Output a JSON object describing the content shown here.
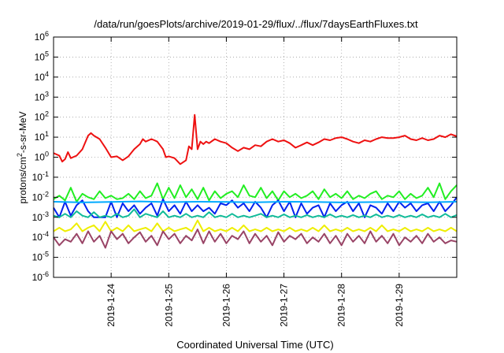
{
  "chart_data": {
    "type": "line",
    "title": "/data/run/goesPlots/archive/2019-01-29/flux/../flux/7daysEarthFluxes.txt",
    "xlabel": "Coordinated Universal Time (UTC)",
    "ylabel": "protons/cm2-s-sr-MeV",
    "ylabel_main": "protons/cm",
    "ylabel_sup": "2",
    "ylabel_rest": "-s-sr-MeV",
    "yscale": "log",
    "ylim": [
      1e-06,
      1000000.0
    ],
    "xlim": [
      0,
      7
    ],
    "x_ticks": [
      {
        "x": 1,
        "label": "2019-1-24"
      },
      {
        "x": 2,
        "label": "2019-1-25"
      },
      {
        "x": 3,
        "label": "2019-1-26"
      },
      {
        "x": 4,
        "label": "2019-1-27"
      },
      {
        "x": 5,
        "label": "2019-1-28"
      },
      {
        "x": 6,
        "label": "2019-1-29"
      }
    ],
    "y_ticks": [
      {
        "value": 1e-06,
        "base": "10",
        "exp": "-6"
      },
      {
        "value": 1e-05,
        "base": "10",
        "exp": "-5"
      },
      {
        "value": 0.0001,
        "base": "10",
        "exp": "-4"
      },
      {
        "value": 0.001,
        "base": "10",
        "exp": "-3"
      },
      {
        "value": 0.01,
        "base": "10",
        "exp": "-2"
      },
      {
        "value": 0.1,
        "base": "10",
        "exp": "-1"
      },
      {
        "value": 1,
        "base": "10",
        "exp": "0"
      },
      {
        "value": 10,
        "base": "10",
        "exp": "1"
      },
      {
        "value": 100,
        "base": "10",
        "exp": "2"
      },
      {
        "value": 1000,
        "base": "10",
        "exp": "3"
      },
      {
        "value": 10000,
        "base": "10",
        "exp": "4"
      },
      {
        "value": 100000,
        "base": "10",
        "exp": "5"
      },
      {
        "value": 1000000,
        "base": "10",
        "exp": "6"
      }
    ],
    "grid": true,
    "series": [
      {
        "color": "#ee1111",
        "x": [
          0,
          0.1,
          0.15,
          0.2,
          0.25,
          0.3,
          0.4,
          0.5,
          0.6,
          0.65,
          0.7,
          0.8,
          0.9,
          1.0,
          1.1,
          1.2,
          1.3,
          1.4,
          1.5,
          1.55,
          1.6,
          1.7,
          1.75,
          1.8,
          1.9,
          1.95,
          2.0,
          2.1,
          2.2,
          2.3,
          2.35,
          2.4,
          2.45,
          2.5,
          2.55,
          2.6,
          2.65,
          2.7,
          2.8,
          2.9,
          3.0,
          3.1,
          3.2,
          3.3,
          3.4,
          3.5,
          3.6,
          3.7,
          3.8,
          3.9,
          4.0,
          4.1,
          4.2,
          4.3,
          4.4,
          4.5,
          4.6,
          4.7,
          4.8,
          4.9,
          5.0,
          5.1,
          5.2,
          5.3,
          5.4,
          5.5,
          5.6,
          5.7,
          5.8,
          5.9,
          6.0,
          6.1,
          6.2,
          6.3,
          6.4,
          6.5,
          6.6,
          6.7,
          6.8,
          6.9,
          7.0
        ],
        "y": [
          1.6,
          1.2,
          0.6,
          0.8,
          1.8,
          0.9,
          1.2,
          2.5,
          12,
          16,
          12,
          8,
          3,
          1.0,
          1.1,
          0.7,
          1.1,
          2.5,
          4.5,
          8,
          6,
          8,
          7,
          6,
          2.5,
          1.0,
          1.1,
          0.9,
          0.45,
          0.7,
          3.5,
          2.5,
          130,
          2.5,
          6,
          4.5,
          6,
          5,
          8,
          6,
          5,
          3,
          2,
          3,
          2.5,
          4,
          3.5,
          6,
          8,
          6,
          7,
          5,
          3,
          4,
          5.5,
          4,
          5.5,
          8,
          7,
          9,
          10,
          8,
          6,
          5,
          7,
          6,
          8,
          10,
          9,
          9,
          10,
          12,
          8,
          7,
          9,
          7,
          8,
          12,
          10,
          14,
          11
        ]
      },
      {
        "color": "#22ee22",
        "x": [
          0,
          0.1,
          0.2,
          0.3,
          0.4,
          0.5,
          0.6,
          0.7,
          0.8,
          0.9,
          1.0,
          1.1,
          1.2,
          1.3,
          1.4,
          1.5,
          1.6,
          1.7,
          1.8,
          1.9,
          2.0,
          2.1,
          2.2,
          2.3,
          2.4,
          2.5,
          2.6,
          2.7,
          2.8,
          2.9,
          3.0,
          3.1,
          3.2,
          3.3,
          3.4,
          3.5,
          3.6,
          3.7,
          3.8,
          3.9,
          4.0,
          4.1,
          4.2,
          4.3,
          4.4,
          4.5,
          4.6,
          4.7,
          4.8,
          4.9,
          5.0,
          5.1,
          5.2,
          5.3,
          5.4,
          5.5,
          5.6,
          5.7,
          5.8,
          5.9,
          6.0,
          6.1,
          6.2,
          6.3,
          6.4,
          6.5,
          6.6,
          6.7,
          6.8,
          6.9,
          7.0
        ],
        "y": [
          0.008,
          0.012,
          0.007,
          0.03,
          0.006,
          0.015,
          0.01,
          0.008,
          0.02,
          0.009,
          0.012,
          0.008,
          0.009,
          0.015,
          0.008,
          0.02,
          0.009,
          0.012,
          0.05,
          0.008,
          0.03,
          0.009,
          0.04,
          0.01,
          0.025,
          0.008,
          0.03,
          0.007,
          0.02,
          0.009,
          0.015,
          0.02,
          0.01,
          0.04,
          0.012,
          0.01,
          0.03,
          0.009,
          0.02,
          0.007,
          0.02,
          0.01,
          0.015,
          0.009,
          0.012,
          0.02,
          0.008,
          0.025,
          0.01,
          0.015,
          0.009,
          0.02,
          0.008,
          0.012,
          0.009,
          0.015,
          0.02,
          0.008,
          0.012,
          0.01,
          0.02,
          0.008,
          0.015,
          0.009,
          0.012,
          0.03,
          0.01,
          0.05,
          0.008,
          0.02,
          0.04
        ]
      },
      {
        "color": "#0022ee",
        "x": [
          0,
          0.1,
          0.2,
          0.3,
          0.4,
          0.5,
          0.6,
          0.7,
          0.8,
          0.9,
          1.0,
          1.1,
          1.2,
          1.3,
          1.4,
          1.5,
          1.6,
          1.7,
          1.8,
          1.9,
          2.0,
          2.1,
          2.2,
          2.3,
          2.4,
          2.5,
          2.6,
          2.7,
          2.8,
          2.9,
          3.0,
          3.1,
          3.2,
          3.3,
          3.4,
          3.5,
          3.6,
          3.7,
          3.8,
          3.9,
          4.0,
          4.1,
          4.2,
          4.3,
          4.4,
          4.5,
          4.6,
          4.7,
          4.8,
          4.9,
          5.0,
          5.1,
          5.2,
          5.3,
          5.4,
          5.5,
          5.6,
          5.7,
          5.8,
          5.9,
          6.0,
          6.1,
          6.2,
          6.3,
          6.4,
          6.5,
          6.6,
          6.7,
          6.8,
          6.9,
          7.0
        ],
        "y": [
          0.003,
          0.001,
          0.006,
          0.0012,
          0.004,
          0.007,
          0.002,
          0.001,
          0.001,
          0.001,
          0.006,
          0.001,
          0.005,
          0.002,
          0.004,
          0.0015,
          0.003,
          0.005,
          0.0012,
          0.008,
          0.002,
          0.004,
          0.0015,
          0.006,
          0.002,
          0.004,
          0.002,
          0.003,
          0.0015,
          0.005,
          0.004,
          0.007,
          0.003,
          0.005,
          0.002,
          0.006,
          0.003,
          0.001,
          0.004,
          0.007,
          0.002,
          0.006,
          0.001,
          0.005,
          0.0015,
          0.003,
          0.004,
          0.001,
          0.005,
          0.002,
          0.004,
          0.006,
          0.002,
          0.005,
          0.001,
          0.004,
          0.003,
          0.0015,
          0.005,
          0.002,
          0.006,
          0.003,
          0.005,
          0.002,
          0.004,
          0.005,
          0.002,
          0.006,
          0.002,
          0.004,
          0.01
        ]
      },
      {
        "color": "#00aaff",
        "x": [
          0,
          0.5,
          1.0,
          1.5,
          2.0,
          2.5,
          3.0,
          3.5,
          4.0,
          4.5,
          5.0,
          5.5,
          6.0,
          6.5,
          7.0
        ],
        "y": [
          0.006,
          0.0055,
          0.0058,
          0.0062,
          0.0057,
          0.006,
          0.0059,
          0.0056,
          0.006,
          0.0058,
          0.0055,
          0.0057,
          0.0058,
          0.0056,
          0.006
        ]
      },
      {
        "color": "#11bb99",
        "x": [
          0,
          0.1,
          0.2,
          0.3,
          0.4,
          0.5,
          0.6,
          0.7,
          0.8,
          0.9,
          1.0,
          1.1,
          1.2,
          1.3,
          1.4,
          1.5,
          1.6,
          1.7,
          1.8,
          1.9,
          2.0,
          2.1,
          2.2,
          2.3,
          2.4,
          2.5,
          2.6,
          2.7,
          2.8,
          2.9,
          3.0,
          3.1,
          3.2,
          3.3,
          3.4,
          3.5,
          3.6,
          3.7,
          3.8,
          3.9,
          4.0,
          4.1,
          4.2,
          4.3,
          4.4,
          4.5,
          4.6,
          4.7,
          4.8,
          4.9,
          5.0,
          5.1,
          5.2,
          5.3,
          5.4,
          5.5,
          5.6,
          5.7,
          5.8,
          5.9,
          6.0,
          6.1,
          6.2,
          6.3,
          6.4,
          6.5,
          6.6,
          6.7,
          6.8,
          6.9,
          7.0
        ],
        "y": [
          0.0012,
          0.001,
          0.0015,
          0.001,
          0.002,
          0.0012,
          0.001,
          0.0018,
          0.001,
          0.0012,
          0.001,
          0.0015,
          0.001,
          0.0012,
          0.0025,
          0.001,
          0.0015,
          0.0012,
          0.001,
          0.002,
          0.001,
          0.0012,
          0.001,
          0.0015,
          0.001,
          0.0012,
          0.001,
          0.0018,
          0.001,
          0.0012,
          0.001,
          0.0015,
          0.001,
          0.0012,
          0.001,
          0.0012,
          0.0015,
          0.001,
          0.0012,
          0.001,
          0.0014,
          0.001,
          0.0012,
          0.001,
          0.0013,
          0.001,
          0.0012,
          0.001,
          0.0014,
          0.001,
          0.0012,
          0.001,
          0.0013,
          0.001,
          0.0012,
          0.001,
          0.0014,
          0.001,
          0.0012,
          0.001,
          0.0013,
          0.001,
          0.0012,
          0.001,
          0.0014,
          0.001,
          0.0012,
          0.001,
          0.0015,
          0.001,
          0.0013
        ]
      },
      {
        "color": "#eeee00",
        "x": [
          0,
          0.1,
          0.2,
          0.3,
          0.4,
          0.5,
          0.6,
          0.7,
          0.8,
          0.9,
          1.0,
          1.1,
          1.2,
          1.3,
          1.4,
          1.5,
          1.6,
          1.7,
          1.8,
          1.9,
          2.0,
          2.1,
          2.2,
          2.3,
          2.4,
          2.5,
          2.6,
          2.7,
          2.8,
          2.9,
          3.0,
          3.1,
          3.2,
          3.3,
          3.4,
          3.5,
          3.6,
          3.7,
          3.8,
          3.9,
          4.0,
          4.1,
          4.2,
          4.3,
          4.4,
          4.5,
          4.6,
          4.7,
          4.8,
          4.9,
          5.0,
          5.1,
          5.2,
          5.3,
          5.4,
          5.5,
          5.6,
          5.7,
          5.8,
          5.9,
          6.0,
          6.1,
          6.2,
          6.3,
          6.4,
          6.5,
          6.6,
          6.7,
          6.8,
          6.9,
          7.0
        ],
        "y": [
          0.0002,
          0.0003,
          0.0002,
          0.00025,
          0.0005,
          0.0002,
          0.0003,
          0.0004,
          0.0002,
          0.0006,
          0.0002,
          0.0003,
          0.0002,
          0.0004,
          0.0002,
          0.00025,
          0.0003,
          0.0002,
          0.0005,
          0.0002,
          0.0003,
          0.0002,
          0.00025,
          0.0003,
          0.0002,
          0.0007,
          0.0002,
          0.0003,
          0.0002,
          0.00025,
          0.0002,
          0.0003,
          0.0002,
          0.0004,
          0.0002,
          0.00025,
          0.0002,
          0.0003,
          0.0002,
          0.00025,
          0.0002,
          0.0003,
          0.0002,
          0.00025,
          0.0002,
          0.0003,
          0.0002,
          0.0004,
          0.0002,
          0.00025,
          0.0002,
          0.0003,
          0.0002,
          0.00025,
          0.0002,
          0.0003,
          0.0002,
          0.0004,
          0.0002,
          0.00025,
          0.0002,
          0.0003,
          0.0002,
          0.00025,
          0.0002,
          0.0003,
          0.0002,
          0.00025,
          0.0002,
          0.0003,
          0.0002
        ]
      },
      {
        "color": "#994466",
        "x": [
          0,
          0.1,
          0.2,
          0.3,
          0.4,
          0.5,
          0.6,
          0.7,
          0.8,
          0.9,
          1.0,
          1.1,
          1.2,
          1.3,
          1.4,
          1.5,
          1.6,
          1.7,
          1.8,
          1.9,
          2.0,
          2.1,
          2.2,
          2.3,
          2.4,
          2.5,
          2.6,
          2.7,
          2.8,
          2.9,
          3.0,
          3.1,
          3.2,
          3.3,
          3.4,
          3.5,
          3.6,
          3.7,
          3.8,
          3.9,
          4.0,
          4.1,
          4.2,
          4.3,
          4.4,
          4.5,
          4.6,
          4.7,
          4.8,
          4.9,
          5.0,
          5.1,
          5.2,
          5.3,
          5.4,
          5.5,
          5.6,
          5.7,
          5.8,
          5.9,
          6.0,
          6.1,
          6.2,
          6.3,
          6.4,
          6.5,
          6.6,
          6.7,
          6.8,
          6.9,
          7.0
        ],
        "y": [
          0.0001,
          4e-05,
          8e-05,
          6e-05,
          0.00015,
          5e-05,
          0.0002,
          6e-05,
          0.00012,
          3e-05,
          0.0002,
          8e-05,
          0.00015,
          5e-05,
          0.0001,
          0.00018,
          6e-05,
          0.00012,
          4e-05,
          0.0002,
          8e-05,
          0.00015,
          5e-05,
          0.00012,
          7e-05,
          0.00025,
          5e-05,
          0.0002,
          6e-05,
          0.00015,
          5e-05,
          0.00012,
          8e-05,
          0.0002,
          5e-05,
          0.00015,
          6e-05,
          0.00012,
          4e-05,
          0.00018,
          6e-05,
          0.00012,
          8e-05,
          0.00015,
          5e-05,
          0.0001,
          6e-05,
          0.00015,
          5e-05,
          0.00012,
          4e-05,
          0.00015,
          6e-05,
          0.00012,
          5e-05,
          0.0002,
          6e-05,
          0.00012,
          5e-05,
          0.00015,
          4e-05,
          0.0001,
          6e-05,
          0.00012,
          5e-05,
          0.00015,
          6e-05,
          0.0001,
          5e-05,
          7e-05,
          6e-05
        ]
      }
    ]
  }
}
